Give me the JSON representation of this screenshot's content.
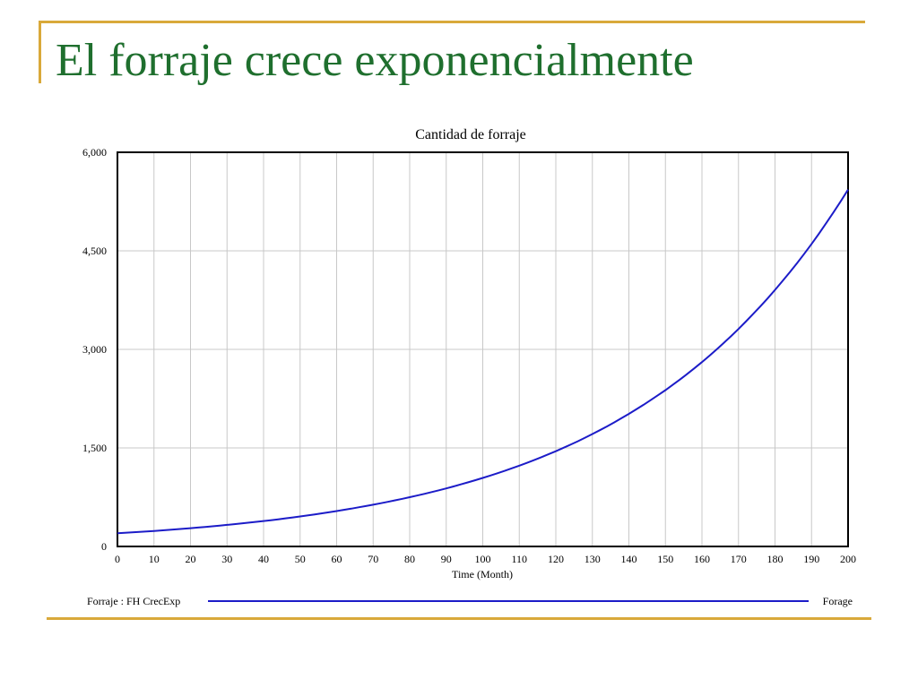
{
  "slide": {
    "title": "El forraje crece exponencialmente",
    "accent_color": "#d9a93a",
    "title_color": "#1f6f2e"
  },
  "chart_data": {
    "type": "line",
    "title": "Cantidad de forraje",
    "xlabel": "Time (Month)",
    "ylabel": "",
    "xlim": [
      0,
      200
    ],
    "ylim": [
      0,
      6000
    ],
    "x_ticks": [
      0,
      10,
      20,
      30,
      40,
      50,
      60,
      70,
      80,
      90,
      100,
      110,
      120,
      130,
      140,
      150,
      160,
      170,
      180,
      190,
      200
    ],
    "y_ticks": [
      0,
      1500,
      3000,
      4500,
      6000
    ],
    "y_tick_labels": [
      "0",
      "1,500",
      "3,000",
      "4,500",
      "6,000"
    ],
    "grid": true,
    "legend_position": "bottom",
    "series": [
      {
        "name": "Forraje : FH CrecExp",
        "unit": "Forage",
        "color": "#1c1cc8",
        "x": [
          0,
          10,
          20,
          30,
          40,
          50,
          60,
          70,
          80,
          90,
          100,
          110,
          120,
          130,
          140,
          150,
          160,
          170,
          180,
          190,
          200
        ],
        "y": [
          200,
          236,
          278,
          328,
          387,
          457,
          539,
          636,
          750,
          884,
          1043,
          1230,
          1450,
          1711,
          2018,
          2380,
          2807,
          3311,
          3905,
          4605,
          5432
        ]
      }
    ]
  }
}
